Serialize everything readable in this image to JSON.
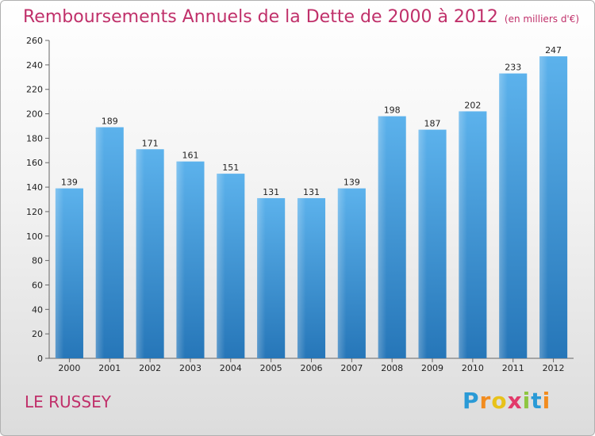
{
  "title": "Remboursements Annuels de la Dette de 2000 à 2012",
  "subtitle": "(en milliers d'€)",
  "commune": "LE RUSSEY",
  "logo": {
    "text": "Proxiti",
    "letters": [
      "P",
      "r",
      "o",
      "x",
      "i",
      "t",
      "i"
    ],
    "colors": [
      "#2a9ad6",
      "#f28c1f",
      "#e8c21a",
      "#e23a6a",
      "#8ec640",
      "#2a9ad6",
      "#f28c1f"
    ]
  },
  "colors": {
    "bar_light": "#5aaee8",
    "bar_dark": "#2a7bbf",
    "title": "#c0306a"
  },
  "chart_data": {
    "type": "bar",
    "categories": [
      "2000",
      "2001",
      "2002",
      "2003",
      "2004",
      "2005",
      "2006",
      "2007",
      "2008",
      "2009",
      "2010",
      "2011",
      "2012"
    ],
    "values": [
      139,
      189,
      171,
      161,
      151,
      131,
      131,
      139,
      198,
      187,
      202,
      233,
      247
    ],
    "ylim": [
      0,
      260
    ],
    "yticks": [
      0,
      20,
      40,
      60,
      80,
      100,
      120,
      140,
      160,
      180,
      200,
      220,
      240,
      260
    ],
    "grid": false
  }
}
